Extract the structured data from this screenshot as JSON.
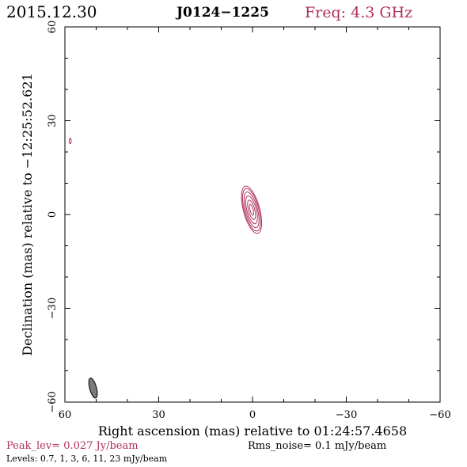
{
  "header": {
    "date": "2015.12.30",
    "source": "J0124−1225",
    "freq": "Freq: 4.3 GHz"
  },
  "colors": {
    "accent": "#b0305c",
    "axis": "#000000",
    "beam_fill": "#7a7a7a"
  },
  "chart_data": {
    "type": "contour",
    "xlabel": "Right ascension (mas) relative to 01:24:57.4658",
    "ylabel": "Declination (mas) relative to −12:25:52.621",
    "xlim": [
      60,
      -60
    ],
    "ylim": [
      -60,
      60
    ],
    "xticks": [
      60,
      30,
      0,
      -30,
      -60
    ],
    "yticks": [
      -60,
      -30,
      0,
      30,
      60
    ],
    "xtick_labels": [
      "60",
      "30",
      "0",
      "−30",
      "−60"
    ],
    "ytick_labels": [
      "−60",
      "−30",
      "0",
      "30",
      "60"
    ],
    "contour_levels_mJy": [
      0.7,
      1,
      3,
      6,
      11,
      23
    ],
    "source_component": {
      "center_ra_mas": 0.3,
      "center_dec_mas": 1.5,
      "contours": [
        {
          "level": 0.7,
          "ra_semi": 2.6,
          "dec_semi": 7.8
        },
        {
          "level": 1,
          "ra_semi": 2.3,
          "dec_semi": 7.0
        },
        {
          "level": 3,
          "ra_semi": 1.9,
          "dec_semi": 5.9
        },
        {
          "level": 6,
          "ra_semi": 1.5,
          "dec_semi": 4.6
        },
        {
          "level": 11,
          "ra_semi": 1.0,
          "dec_semi": 3.2
        },
        {
          "level": 23,
          "ra_semi": 0.5,
          "dec_semi": 1.8
        }
      ],
      "tilt_deg": -15
    },
    "minor_component": {
      "ra_mas": 58.3,
      "dec_mas": 23.5,
      "ra_semi": 0.3,
      "dec_semi": 0.9
    },
    "beam": {
      "ra_mas": 51,
      "dec_mas": -55.5,
      "major_mas": 3.3,
      "minor_mas": 1.1,
      "pa_deg": -15
    },
    "grid": false
  },
  "footer": {
    "peak": "Peak_lev=  0.027 Jy/beam",
    "rms": "Rms_noise=  0.1 mJy/beam",
    "levels": "Levels: 0.7,   1,   3,   6,  11,  23 mJy/beam"
  }
}
